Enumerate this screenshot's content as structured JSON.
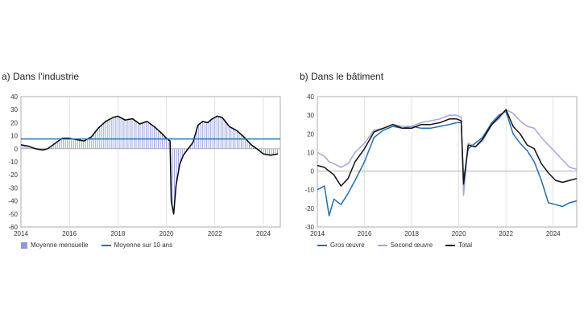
{
  "chart_data": [
    {
      "type": "bar",
      "panel_label": "a)",
      "title": "Dans l’industrie",
      "xlabel": "",
      "ylabel": "",
      "xlim": [
        2014,
        2024.7
      ],
      "ylim": [
        -60,
        40
      ],
      "x_ticks": [
        "2014",
        "2016",
        "2018",
        "2020",
        "2022",
        "2024"
      ],
      "y_ticks": [
        "40",
        "30",
        "20",
        "10",
        "0",
        "-10",
        "-20",
        "-30",
        "-40",
        "-50",
        "-60"
      ],
      "grid": "vertical",
      "legend_position": "bottom",
      "reference_line": {
        "name": "Moyenne sur 10 ans",
        "value": 7.5,
        "color": "#1f6fb5"
      },
      "series": [
        {
          "name": "Moyenne mensuelle",
          "style": "bar",
          "color": "#8e9ad6",
          "x": [
            2014.0,
            2014.3,
            2014.6,
            2014.9,
            2015.1,
            2015.4,
            2015.7,
            2016.0,
            2016.3,
            2016.6,
            2016.9,
            2017.2,
            2017.5,
            2017.8,
            2018.0,
            2018.3,
            2018.6,
            2018.9,
            2019.2,
            2019.5,
            2019.8,
            2020.0,
            2020.15,
            2020.2,
            2020.3,
            2020.4,
            2020.55,
            2020.7,
            2020.9,
            2021.1,
            2021.3,
            2021.5,
            2021.7,
            2021.9,
            2022.1,
            2022.3,
            2022.6,
            2022.9,
            2023.2,
            2023.5,
            2023.8,
            2024.0,
            2024.3,
            2024.6
          ],
          "values": [
            3,
            2,
            0,
            -1,
            0,
            4,
            8,
            8,
            7,
            6,
            9,
            16,
            21,
            24,
            25,
            22,
            23,
            19,
            21,
            17,
            12,
            8,
            6,
            -40,
            -50,
            -28,
            -12,
            -5,
            0,
            5,
            18,
            21,
            20,
            23,
            25,
            24,
            17,
            14,
            9,
            3,
            -1,
            -4,
            -5,
            -4
          ]
        },
        {
          "name": "",
          "style": "line",
          "color": "#000000",
          "x": [
            2014.0,
            2014.3,
            2014.6,
            2014.9,
            2015.1,
            2015.4,
            2015.7,
            2016.0,
            2016.3,
            2016.6,
            2016.9,
            2017.2,
            2017.5,
            2017.8,
            2018.0,
            2018.3,
            2018.6,
            2018.9,
            2019.2,
            2019.5,
            2019.8,
            2020.0,
            2020.15,
            2020.2,
            2020.3,
            2020.4,
            2020.55,
            2020.7,
            2020.9,
            2021.1,
            2021.3,
            2021.5,
            2021.7,
            2021.9,
            2022.1,
            2022.3,
            2022.6,
            2022.9,
            2023.2,
            2023.5,
            2023.8,
            2024.0,
            2024.3,
            2024.6
          ],
          "values": [
            3,
            2,
            0,
            -1,
            0,
            4,
            8,
            8,
            7,
            6,
            9,
            16,
            21,
            24,
            25,
            22,
            23,
            19,
            21,
            17,
            12,
            8,
            6,
            -40,
            -50,
            -28,
            -12,
            -5,
            0,
            5,
            18,
            21,
            20,
            23,
            25,
            24,
            17,
            14,
            9,
            3,
            -1,
            -4,
            -5,
            -4
          ]
        }
      ]
    },
    {
      "type": "line",
      "panel_label": "b)",
      "title": "Dans le bâtiment",
      "xlabel": "",
      "ylabel": "",
      "xlim": [
        2014,
        2025
      ],
      "ylim": [
        -30,
        40
      ],
      "x_ticks": [
        "2014",
        "2016",
        "2018",
        "2020",
        "2022",
        "2024"
      ],
      "y_ticks": [
        "40",
        "30",
        "20",
        "10",
        "0",
        "-10",
        "-20",
        "-30"
      ],
      "grid": "vertical",
      "legend_position": "bottom",
      "series": [
        {
          "name": "Gros œuvre",
          "color": "#1f6fb5",
          "x": [
            2014.0,
            2014.3,
            2014.5,
            2014.7,
            2015.0,
            2015.3,
            2015.6,
            2016.0,
            2016.4,
            2016.8,
            2017.2,
            2017.6,
            2018.0,
            2018.4,
            2018.8,
            2019.2,
            2019.6,
            2019.9,
            2020.1,
            2020.2,
            2020.4,
            2020.7,
            2021.0,
            2021.4,
            2021.7,
            2022.0,
            2022.3,
            2022.6,
            2022.9,
            2023.2,
            2023.5,
            2023.8,
            2024.1,
            2024.4,
            2024.7,
            2025.0
          ],
          "values": [
            -10,
            -8,
            -24,
            -15,
            -18,
            -12,
            -5,
            5,
            18,
            22,
            24,
            23,
            24,
            23,
            23,
            24,
            25,
            26,
            26,
            -5,
            12,
            15,
            18,
            26,
            30,
            32,
            20,
            15,
            11,
            5,
            -5,
            -17,
            -18,
            -19,
            -17,
            -16
          ]
        },
        {
          "name": "Second œuvre",
          "color": "#a3a6dd",
          "x": [
            2014.0,
            2014.3,
            2014.5,
            2014.7,
            2015.0,
            2015.3,
            2015.6,
            2016.0,
            2016.4,
            2016.8,
            2017.2,
            2017.6,
            2018.0,
            2018.4,
            2018.8,
            2019.2,
            2019.6,
            2019.9,
            2020.1,
            2020.2,
            2020.4,
            2020.7,
            2021.0,
            2021.4,
            2021.7,
            2022.0,
            2022.3,
            2022.6,
            2022.9,
            2023.2,
            2023.5,
            2023.8,
            2024.1,
            2024.4,
            2024.7,
            2025.0
          ],
          "values": [
            10,
            8,
            5,
            4,
            2,
            4,
            10,
            15,
            22,
            23,
            25,
            24,
            24,
            26,
            27,
            28,
            30,
            30,
            29,
            -13,
            15,
            13,
            16,
            25,
            28,
            33,
            31,
            27,
            24,
            23,
            18,
            14,
            10,
            6,
            2,
            1
          ]
        },
        {
          "name": "Total",
          "color": "#111111",
          "x": [
            2014.0,
            2014.3,
            2014.5,
            2014.7,
            2015.0,
            2015.3,
            2015.6,
            2016.0,
            2016.4,
            2016.8,
            2017.2,
            2017.6,
            2018.0,
            2018.4,
            2018.8,
            2019.2,
            2019.6,
            2019.9,
            2020.1,
            2020.2,
            2020.4,
            2020.7,
            2021.0,
            2021.4,
            2021.7,
            2022.0,
            2022.3,
            2022.6,
            2022.9,
            2023.2,
            2023.5,
            2023.8,
            2024.1,
            2024.4,
            2024.7,
            2025.0
          ],
          "values": [
            3,
            2,
            0,
            -2,
            -8,
            -4,
            5,
            12,
            21,
            23,
            25,
            23,
            23,
            25,
            25,
            26,
            28,
            28,
            27,
            -7,
            14,
            13,
            17,
            25,
            29,
            33,
            24,
            20,
            14,
            12,
            4,
            -1,
            -5,
            -6,
            -5,
            -4
          ]
        }
      ]
    }
  ]
}
